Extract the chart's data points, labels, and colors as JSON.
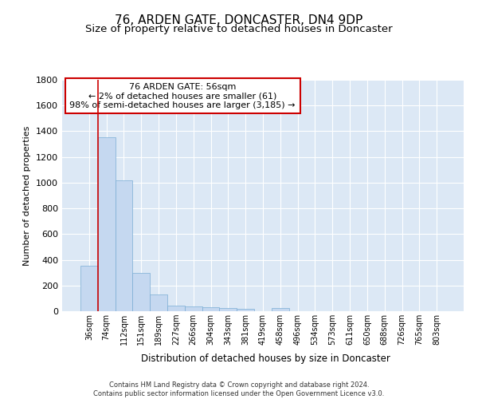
{
  "title": "76, ARDEN GATE, DONCASTER, DN4 9DP",
  "subtitle": "Size of property relative to detached houses in Doncaster",
  "xlabel_bottom": "Distribution of detached houses by size in Doncaster",
  "ylabel": "Number of detached properties",
  "footnote": "Contains HM Land Registry data © Crown copyright and database right 2024.\nContains public sector information licensed under the Open Government Licence v3.0.",
  "bar_labels": [
    "36sqm",
    "74sqm",
    "112sqm",
    "151sqm",
    "189sqm",
    "227sqm",
    "266sqm",
    "304sqm",
    "343sqm",
    "381sqm",
    "419sqm",
    "458sqm",
    "496sqm",
    "534sqm",
    "573sqm",
    "611sqm",
    "650sqm",
    "688sqm",
    "726sqm",
    "765sqm",
    "803sqm"
  ],
  "bar_values": [
    355,
    1355,
    1020,
    295,
    130,
    45,
    38,
    32,
    22,
    18,
    0,
    22,
    0,
    0,
    0,
    0,
    0,
    0,
    0,
    0,
    0
  ],
  "bar_color": "#c5d8f0",
  "bar_edge_color": "#7aadd4",
  "red_line_color": "#cc0000",
  "annotation_text": "76 ARDEN GATE: 56sqm\n← 2% of detached houses are smaller (61)\n98% of semi-detached houses are larger (3,185) →",
  "annotation_box_color": "#ffffff",
  "annotation_box_edge": "#cc0000",
  "ylim": [
    0,
    1800
  ],
  "yticks": [
    0,
    200,
    400,
    600,
    800,
    1000,
    1200,
    1400,
    1600,
    1800
  ],
  "plot_bg_color": "#dce8f5",
  "title_fontsize": 11,
  "subtitle_fontsize": 9.5
}
